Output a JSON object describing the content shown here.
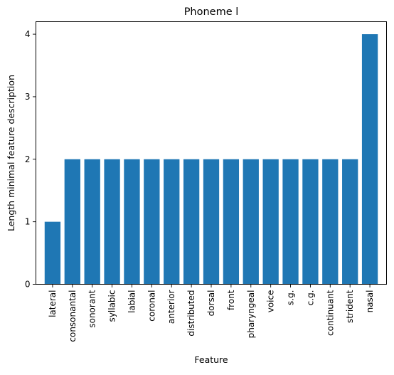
{
  "chart_data": {
    "type": "bar",
    "title": "Phoneme l",
    "xlabel": "Feature",
    "ylabel": "Length minimal feature description",
    "categories": [
      "lateral",
      "consonantal",
      "sonorant",
      "syllabic",
      "labial",
      "coronal",
      "anterior",
      "distributed",
      "dorsal",
      "front",
      "pharyngeal",
      "voice",
      "s.g.",
      "c.g.",
      "continuant",
      "strident",
      "nasal"
    ],
    "values": [
      1,
      2,
      2,
      2,
      2,
      2,
      2,
      2,
      2,
      2,
      2,
      2,
      2,
      2,
      2,
      2,
      4
    ],
    "ylim": [
      0,
      4.2
    ],
    "yticks": [
      0,
      1,
      2,
      3,
      4
    ],
    "grid": false,
    "bar_color": "#1f77b4"
  }
}
